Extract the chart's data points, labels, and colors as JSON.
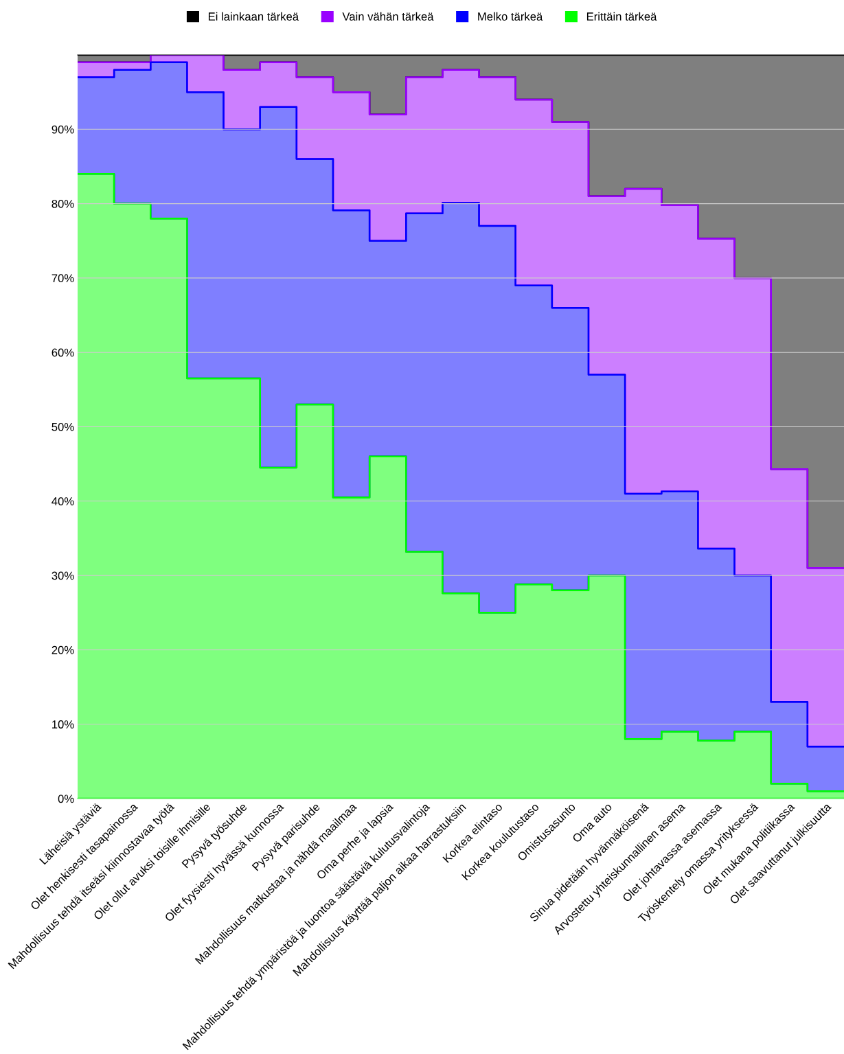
{
  "chart_data": {
    "type": "area",
    "stacked": true,
    "categories": [
      "Läheisiä ystäviä",
      "Olet henkisesti tasapainossa",
      "Mahdollisuus tehdä itseäsi kiinnostavaa työtä",
      "Olet ollut avuksi toisille ihmisille",
      "Pysyvä työsuhde",
      "Olet fyysiesti hyvässä kunnossa",
      "Pysyvä parisuhde",
      "Mahdollisuus matkustaa ja nähdä maailmaa",
      "Oma perhe ja lapsia",
      "Mahdollisuus tehdä ympäristöä ja luontoa säästäviä kulutusvalintoja",
      "Mahdollisuus käyttää paljon aikaa harrastuksiin",
      "Korkea elintaso",
      "Korkea koulutustaso",
      "Omistusasunto",
      "Oma auto",
      "Sinua pidetään hyvännäköisenä",
      "Arvostettu yhteiskunnallinen asema",
      "Olet johtavassa asemassa",
      "Työskentely omassa yrityksessä",
      "Olet mukana politiikassa",
      "Olet saavuttanut julkisuutta"
    ],
    "series": [
      {
        "name": "Erittäin tärkeä",
        "color": "#00ff00",
        "values": [
          84,
          80,
          78,
          56.5,
          56.5,
          44.5,
          53,
          40.5,
          46,
          33.2,
          27.6,
          25,
          28.8,
          28,
          30,
          8,
          9,
          7.8,
          9,
          2,
          1
        ]
      },
      {
        "name": "Melko tärkeä",
        "color": "#0000ff",
        "values": [
          13,
          18,
          21,
          38.5,
          33.5,
          48.5,
          33,
          38.6,
          29,
          45.5,
          52.5,
          52,
          40.2,
          38,
          27,
          33,
          32.3,
          25.8,
          21,
          11,
          6
        ]
      },
      {
        "name": "Vain vähän tärkeä",
        "color": "#9900ff",
        "values": [
          2,
          1,
          1,
          5,
          8,
          6,
          11,
          15.9,
          17,
          18.3,
          17.9,
          20,
          25,
          25,
          24,
          41,
          38.5,
          41.7,
          40,
          31.3,
          24
        ]
      },
      {
        "name": "Ei lainkaan tärkeä",
        "color": "#000000",
        "values": [
          1,
          1,
          0,
          0,
          2,
          1,
          3,
          5,
          8,
          3,
          2,
          3,
          6,
          9,
          19,
          18,
          20.2,
          24.7,
          30,
          55.7,
          69
        ]
      }
    ],
    "ylim": [
      0,
      100
    ],
    "yticks": [
      {
        "value": 0,
        "label": "0%"
      },
      {
        "value": 10,
        "label": "10%"
      },
      {
        "value": 20,
        "label": "20%"
      },
      {
        "value": 30,
        "label": "30%"
      },
      {
        "value": 40,
        "label": "40%"
      },
      {
        "value": 50,
        "label": "50%"
      },
      {
        "value": 60,
        "label": "60%"
      },
      {
        "value": 70,
        "label": "70%"
      },
      {
        "value": 80,
        "label": "80%"
      },
      {
        "value": 90,
        "label": "90%"
      }
    ],
    "grid": "y",
    "legend": "top"
  }
}
